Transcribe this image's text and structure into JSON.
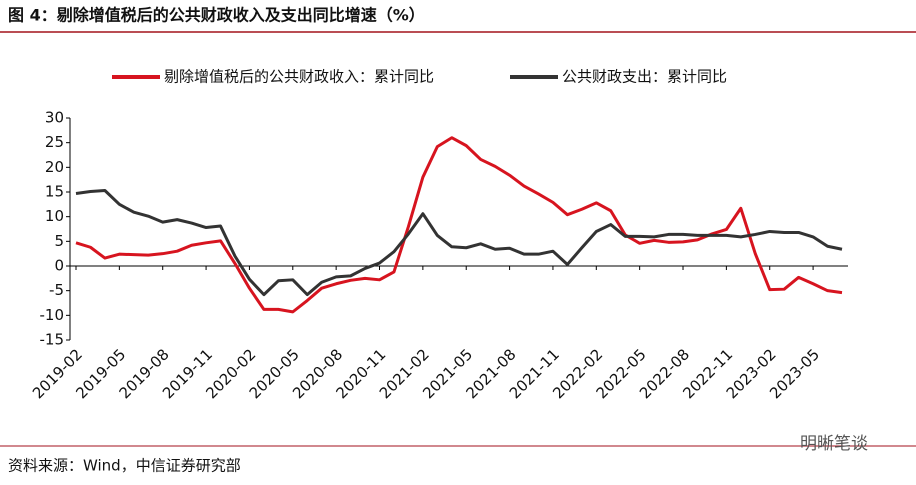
{
  "chart_data": {
    "type": "line",
    "title": "图 4：剔除增值税后的公共财政收入及支出同比增速（%）",
    "source": "资料来源：Wind，中信证券研究部",
    "watermark": "明晰笔谈",
    "categories": [
      "2019-02",
      null,
      null,
      "2019-05",
      null,
      null,
      "2019-08",
      null,
      null,
      "2019-11",
      null,
      null,
      "2020-02",
      null,
      null,
      "2020-05",
      null,
      null,
      "2020-08",
      null,
      null,
      "2020-11",
      null,
      null,
      "2021-02",
      null,
      null,
      "2021-05",
      null,
      null,
      "2021-08",
      null,
      null,
      "2021-11",
      null,
      null,
      "2022-02",
      null,
      null,
      "2022-05",
      null,
      null,
      "2022-08",
      null,
      null,
      "2022-11",
      null,
      null,
      "2023-02",
      null,
      null,
      "2023-05",
      null,
      null
    ],
    "series": [
      {
        "name": "剔除增值税后的公共财政收入：累计同比",
        "color": "#d7141f",
        "values": [
          4.7,
          3.8,
          1.6,
          2.4,
          2.3,
          2.2,
          2.5,
          3.0,
          4.2,
          4.7,
          5.1,
          0.5,
          -4.5,
          -8.8,
          -8.8,
          -9.3,
          -7.0,
          -4.5,
          -3.6,
          -2.9,
          -2.5,
          -2.8,
          -1.2,
          8.0,
          18.0,
          24.2,
          26.0,
          24.4,
          21.6,
          20.2,
          18.4,
          16.2,
          14.6,
          12.9,
          10.4,
          11.5,
          12.8,
          11.2,
          6.3,
          4.6,
          5.2,
          4.8,
          4.9,
          5.3,
          6.5,
          7.4,
          11.7,
          2.5,
          -4.8,
          -4.7,
          -2.3,
          -3.6,
          -5.0,
          -5.4
        ]
      },
      {
        "name": "公共财政支出：累计同比",
        "color": "#333333",
        "values": [
          14.7,
          15.1,
          15.3,
          12.5,
          10.9,
          10.1,
          8.9,
          9.4,
          8.7,
          7.8,
          8.1,
          2.0,
          -2.7,
          -5.8,
          -3.0,
          -2.8,
          -5.8,
          -3.3,
          -2.2,
          -2.0,
          -0.5,
          0.6,
          2.9,
          6.5,
          10.6,
          6.2,
          3.9,
          3.7,
          4.5,
          3.4,
          3.6,
          2.4,
          2.4,
          3.0,
          0.3,
          3.7,
          7.0,
          8.4,
          6.0,
          6.0,
          5.9,
          6.4,
          6.4,
          6.2,
          6.2,
          6.2,
          5.9,
          6.4,
          7.0,
          6.8,
          6.8,
          5.9,
          4.0,
          3.4
        ]
      }
    ],
    "ylim": [
      -15,
      30
    ],
    "yticks": [
      -15,
      -10,
      -5,
      0,
      5,
      10,
      15,
      20,
      25,
      30
    ],
    "grid": false,
    "legend": "top"
  }
}
